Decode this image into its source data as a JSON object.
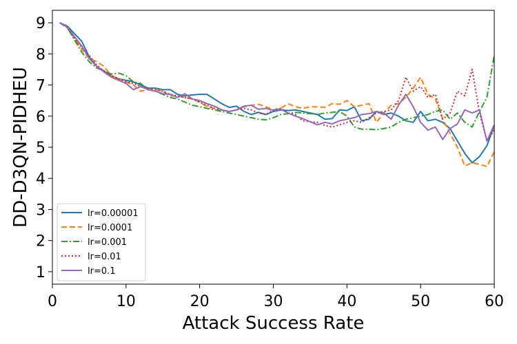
{
  "chart_data": {
    "type": "line",
    "title": "",
    "xlabel": "Attack Success Rate",
    "ylabel": "DD-D3QN-PIDHEU",
    "xlim": [
      0,
      60
    ],
    "ylim": [
      0.6,
      9.4
    ],
    "xticks": [
      0,
      10,
      20,
      30,
      40,
      50,
      60
    ],
    "yticks": [
      1,
      2,
      3,
      4,
      5,
      6,
      7,
      8,
      9
    ],
    "grid": false,
    "legend_position": "lower-left",
    "x": [
      1,
      2,
      3,
      4,
      5,
      6,
      7,
      8,
      9,
      10,
      11,
      12,
      13,
      14,
      15,
      16,
      17,
      18,
      19,
      20,
      21,
      22,
      23,
      24,
      25,
      26,
      27,
      28,
      29,
      30,
      31,
      32,
      33,
      34,
      35,
      36,
      37,
      38,
      39,
      40,
      41,
      42,
      43,
      44,
      45,
      46,
      47,
      48,
      49,
      50,
      51,
      52,
      53,
      54,
      55,
      56,
      57,
      58,
      59,
      60
    ],
    "series": [
      {
        "name": "lr=0.00001",
        "color": "#1f77b4",
        "dash": "solid",
        "values": [
          9.0,
          8.9,
          8.65,
          8.4,
          7.9,
          7.6,
          7.45,
          7.3,
          7.2,
          7.15,
          7.1,
          7.0,
          6.9,
          6.9,
          6.85,
          6.85,
          6.7,
          6.65,
          6.68,
          6.7,
          6.7,
          6.55,
          6.4,
          6.28,
          6.32,
          6.15,
          6.05,
          6.12,
          6.05,
          6.15,
          6.2,
          6.18,
          6.2,
          6.15,
          6.1,
          6.05,
          5.9,
          5.92,
          6.2,
          6.18,
          6.3,
          5.85,
          5.9,
          6.15,
          6.05,
          6.1,
          6.0,
          5.85,
          5.8,
          6.15,
          5.85,
          5.9,
          5.8,
          5.6,
          5.2,
          4.8,
          4.5,
          4.7,
          5.05,
          5.7
        ]
      },
      {
        "name": "lr=0.0001",
        "color": "#ff7f0e",
        "dash": "dashed",
        "values": [
          9.0,
          8.85,
          8.5,
          8.15,
          7.85,
          7.75,
          7.6,
          7.3,
          7.2,
          7.1,
          7.0,
          6.8,
          6.85,
          6.85,
          6.8,
          6.65,
          6.65,
          6.6,
          6.55,
          6.45,
          6.3,
          6.25,
          6.2,
          6.15,
          6.2,
          6.3,
          6.35,
          6.38,
          6.3,
          6.2,
          6.25,
          6.4,
          6.3,
          6.25,
          6.3,
          6.3,
          6.28,
          6.4,
          6.38,
          6.5,
          6.3,
          6.35,
          6.4,
          5.8,
          6.1,
          6.35,
          6.4,
          6.6,
          6.9,
          7.25,
          6.7,
          6.55,
          5.9,
          5.45,
          5.0,
          4.4,
          4.5,
          4.45,
          4.38,
          4.85
        ]
      },
      {
        "name": "lr=0.001",
        "color": "#2ca02c",
        "dash": "dashdot",
        "values": [
          9.0,
          8.85,
          8.45,
          8.05,
          7.75,
          7.55,
          7.45,
          7.35,
          7.38,
          7.3,
          7.1,
          7.05,
          6.85,
          6.8,
          6.7,
          6.6,
          6.55,
          6.45,
          6.35,
          6.3,
          6.25,
          6.2,
          6.15,
          6.1,
          6.05,
          6.0,
          5.95,
          5.9,
          5.88,
          5.95,
          6.05,
          6.08,
          6.12,
          6.1,
          6.08,
          6.05,
          6.1,
          6.12,
          6.15,
          6.0,
          5.65,
          5.58,
          5.58,
          5.56,
          5.6,
          5.65,
          5.8,
          5.9,
          5.95,
          6.0,
          6.05,
          6.15,
          6.2,
          5.9,
          6.1,
          5.8,
          5.65,
          6.15,
          6.6,
          7.95
        ]
      },
      {
        "name": "lr=0.01",
        "color": "#d62728",
        "dash": "dotted",
        "values": [
          9.0,
          8.85,
          8.5,
          8.2,
          7.95,
          7.65,
          7.45,
          7.3,
          7.2,
          7.1,
          7.05,
          6.95,
          6.9,
          6.85,
          6.8,
          6.7,
          6.65,
          6.6,
          6.55,
          6.45,
          6.35,
          6.25,
          6.2,
          6.15,
          6.2,
          6.25,
          6.2,
          6.1,
          6.05,
          6.2,
          6.25,
          6.1,
          6.05,
          5.85,
          5.82,
          5.8,
          5.7,
          5.65,
          5.72,
          5.8,
          5.85,
          5.8,
          5.95,
          6.1,
          6.15,
          6.2,
          6.5,
          7.25,
          6.8,
          6.95,
          6.6,
          6.7,
          5.9,
          6.1,
          6.8,
          6.65,
          7.5,
          6.1,
          5.2,
          5.55
        ]
      },
      {
        "name": "lr=0.1",
        "color": "#9467bd",
        "dash": "solid",
        "values": [
          9.0,
          8.88,
          8.55,
          8.25,
          7.85,
          7.6,
          7.42,
          7.25,
          7.15,
          7.05,
          6.85,
          6.95,
          6.85,
          6.8,
          6.72,
          6.7,
          6.6,
          6.72,
          6.55,
          6.5,
          6.4,
          6.32,
          6.2,
          6.15,
          6.2,
          6.32,
          6.35,
          6.22,
          6.25,
          6.18,
          6.22,
          6.1,
          6.0,
          5.92,
          5.82,
          5.72,
          5.8,
          5.75,
          5.85,
          5.9,
          5.95,
          6.05,
          6.08,
          6.15,
          6.1,
          5.9,
          6.35,
          6.7,
          6.3,
          5.8,
          5.55,
          5.65,
          5.25,
          5.6,
          5.75,
          6.2,
          6.1,
          6.2,
          5.2,
          5.72
        ]
      }
    ]
  }
}
